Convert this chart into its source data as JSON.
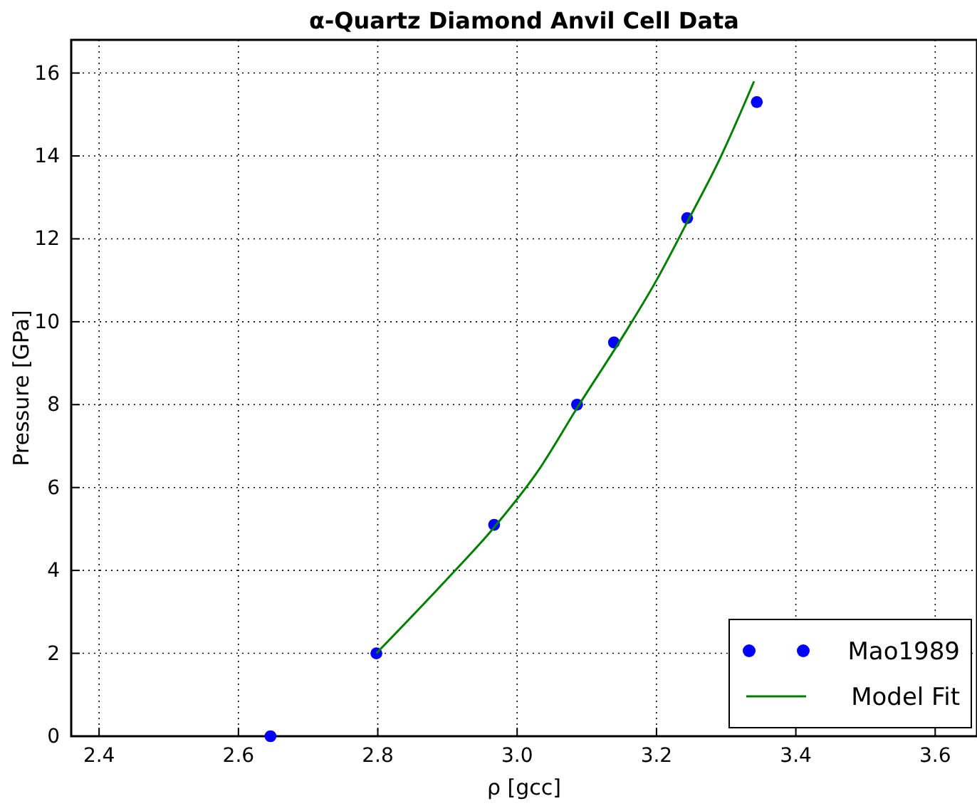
{
  "chart_data": {
    "type": "scatter",
    "title": "α-Quartz Diamond Anvil Cell Data",
    "xlabel": "ρ [gcc]",
    "ylabel": "Pressure [GPa]",
    "xlim": [
      2.36,
      3.66
    ],
    "xticks": [
      {
        "value": 2.4,
        "label": "2.4"
      },
      {
        "value": 2.6,
        "label": "2.6"
      },
      {
        "value": 2.8,
        "label": "2.8"
      },
      {
        "value": 3.0,
        "label": "3.0"
      },
      {
        "value": 3.2,
        "label": "3.2"
      },
      {
        "value": 3.4,
        "label": "3.4"
      },
      {
        "value": 3.6,
        "label": "3.6"
      }
    ],
    "ylim": [
      0,
      16.8
    ],
    "yticks": [
      0,
      2,
      4,
      6,
      8,
      10,
      12,
      14,
      16
    ],
    "grid": true,
    "legend": "bottom right",
    "series": [
      {
        "name": "Mao1989",
        "marker": "circle",
        "color": "#0000ff",
        "x": [
          2.646,
          2.798,
          2.967,
          3.086,
          3.139,
          3.244,
          3.344
        ],
        "values": [
          0,
          2.0,
          5.1,
          8.0,
          9.5,
          12.5,
          15.3
        ]
      },
      {
        "name": "Model Fit",
        "type": "line",
        "line_style": "solid",
        "color": "#008000",
        "x": [
          2.798,
          2.9,
          2.965,
          3.03,
          3.089,
          3.15,
          3.2,
          3.244,
          3.29,
          3.34
        ],
        "values": [
          2.0,
          3.8,
          5.0,
          6.4,
          8.0,
          9.6,
          11.0,
          12.4,
          13.9,
          15.8
        ]
      }
    ]
  }
}
